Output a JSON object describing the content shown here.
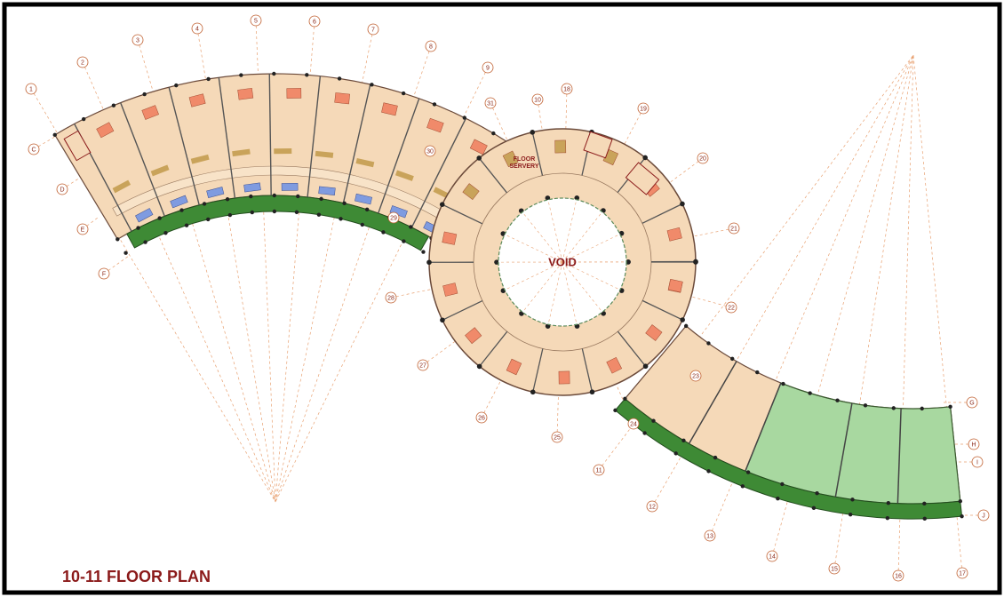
{
  "title": "10-11 FLOOR PLAN",
  "void_label": "VOID",
  "servery_label": [
    "FLOOR",
    "SERVERY"
  ],
  "grid_numbers": [
    "1",
    "2",
    "3",
    "4",
    "5",
    "6",
    "7",
    "8",
    "9",
    "10",
    "11",
    "12",
    "13",
    "14",
    "15",
    "16",
    "17",
    "18",
    "19",
    "20",
    "21",
    "22",
    "23",
    "24",
    "25",
    "26",
    "27",
    "28",
    "29",
    "30",
    "31"
  ],
  "grid_letters": [
    "C",
    "D",
    "E",
    "F",
    "G",
    "H",
    "I",
    "J"
  ]
}
